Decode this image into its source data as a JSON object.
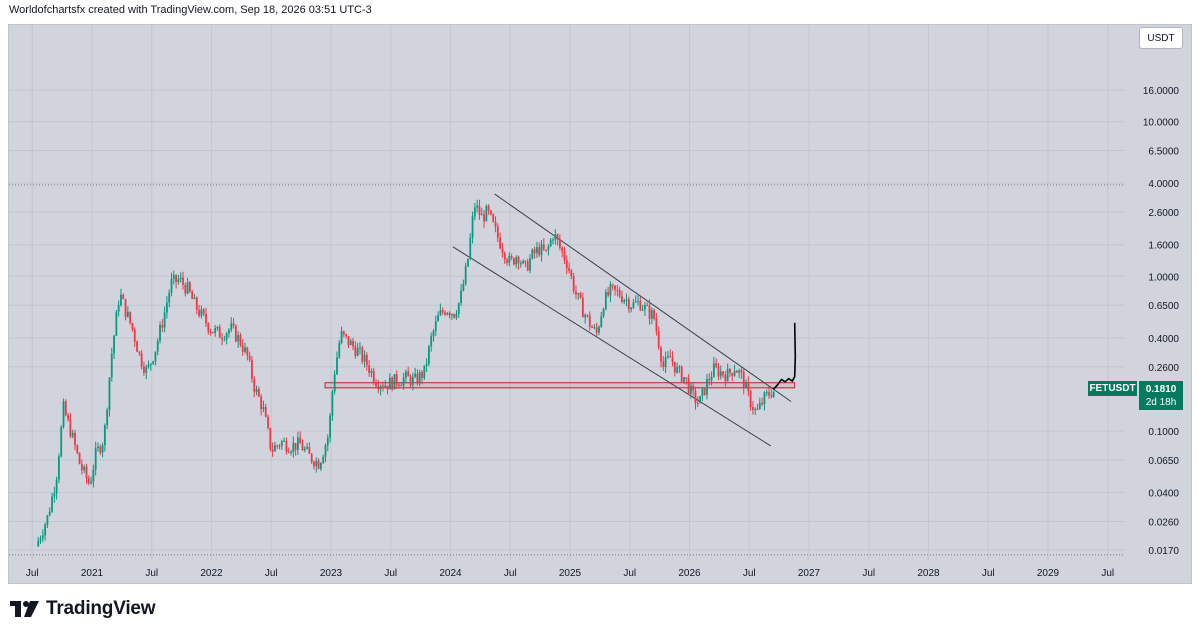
{
  "header": {
    "text": "Worldofchartsfx created with TradingView.com, Sep 18, 2026 03:51 UTC-3"
  },
  "toolbar": {
    "currency_label": "USDT"
  },
  "price_badge": {
    "symbol": "FETUSDT",
    "price": "0.1810",
    "countdown": "2d 18h",
    "color": "#067a5e"
  },
  "footer": {
    "brand": "TradingView"
  },
  "colors": {
    "up": "#089981",
    "down": "#f23645",
    "background": "#d1d4dc",
    "trendline": "#3c3f4a",
    "zone": "#b22833"
  },
  "chart_data": {
    "type": "candlestick",
    "symbol": "FETUSDT",
    "scale": "log",
    "y_ticks": [
      "16.0000",
      "10.0000",
      "6.5000",
      "4.0000",
      "2.6000",
      "1.6000",
      "1.0000",
      "0.6500",
      "0.4000",
      "0.2600",
      "0.1810",
      "0.1000",
      "0.0650",
      "0.0400",
      "0.0260",
      "0.0170"
    ],
    "x_ticks": [
      "Jul",
      "2021",
      "Jul",
      "2022",
      "Jul",
      "2023",
      "Jul",
      "2024",
      "Jul",
      "2025",
      "Jul",
      "2026",
      "Jul",
      "2027",
      "Jul",
      "2028",
      "Jul",
      "2029",
      "Jul"
    ],
    "price_path": [
      {
        "t": 2020.55,
        "p": 0.018
      },
      {
        "t": 2020.65,
        "p": 0.028
      },
      {
        "t": 2020.72,
        "p": 0.05
      },
      {
        "t": 2020.78,
        "p": 0.14
      },
      {
        "t": 2020.84,
        "p": 0.1
      },
      {
        "t": 2020.92,
        "p": 0.06
      },
      {
        "t": 2021.0,
        "p": 0.045
      },
      {
        "t": 2021.05,
        "p": 0.07
      },
      {
        "t": 2021.12,
        "p": 0.09
      },
      {
        "t": 2021.18,
        "p": 0.3
      },
      {
        "t": 2021.25,
        "p": 0.78
      },
      {
        "t": 2021.3,
        "p": 0.6
      },
      {
        "t": 2021.36,
        "p": 0.45
      },
      {
        "t": 2021.42,
        "p": 0.3
      },
      {
        "t": 2021.48,
        "p": 0.24
      },
      {
        "t": 2021.55,
        "p": 0.34
      },
      {
        "t": 2021.62,
        "p": 0.55
      },
      {
        "t": 2021.68,
        "p": 0.9
      },
      {
        "t": 2021.75,
        "p": 0.95
      },
      {
        "t": 2021.82,
        "p": 0.82
      },
      {
        "t": 2021.88,
        "p": 0.65
      },
      {
        "t": 2021.94,
        "p": 0.55
      },
      {
        "t": 2022.02,
        "p": 0.45
      },
      {
        "t": 2022.1,
        "p": 0.42
      },
      {
        "t": 2022.18,
        "p": 0.46
      },
      {
        "t": 2022.26,
        "p": 0.38
      },
      {
        "t": 2022.32,
        "p": 0.3
      },
      {
        "t": 2022.38,
        "p": 0.19
      },
      {
        "t": 2022.45,
        "p": 0.14
      },
      {
        "t": 2022.52,
        "p": 0.075
      },
      {
        "t": 2022.6,
        "p": 0.085
      },
      {
        "t": 2022.68,
        "p": 0.08
      },
      {
        "t": 2022.76,
        "p": 0.082
      },
      {
        "t": 2022.84,
        "p": 0.068
      },
      {
        "t": 2022.92,
        "p": 0.062
      },
      {
        "t": 2023.0,
        "p": 0.095
      },
      {
        "t": 2023.04,
        "p": 0.22
      },
      {
        "t": 2023.1,
        "p": 0.42
      },
      {
        "t": 2023.16,
        "p": 0.38
      },
      {
        "t": 2023.24,
        "p": 0.33
      },
      {
        "t": 2023.32,
        "p": 0.27
      },
      {
        "t": 2023.4,
        "p": 0.21
      },
      {
        "t": 2023.48,
        "p": 0.2
      },
      {
        "t": 2023.56,
        "p": 0.21
      },
      {
        "t": 2023.64,
        "p": 0.22
      },
      {
        "t": 2023.72,
        "p": 0.21
      },
      {
        "t": 2023.8,
        "p": 0.24
      },
      {
        "t": 2023.86,
        "p": 0.4
      },
      {
        "t": 2023.92,
        "p": 0.55
      },
      {
        "t": 2023.98,
        "p": 0.62
      },
      {
        "t": 2024.05,
        "p": 0.58
      },
      {
        "t": 2024.1,
        "p": 0.7
      },
      {
        "t": 2024.16,
        "p": 1.2
      },
      {
        "t": 2024.22,
        "p": 2.9
      },
      {
        "t": 2024.28,
        "p": 2.4
      },
      {
        "t": 2024.33,
        "p": 2.6
      },
      {
        "t": 2024.4,
        "p": 1.9
      },
      {
        "t": 2024.46,
        "p": 1.5
      },
      {
        "t": 2024.52,
        "p": 1.2
      },
      {
        "t": 2024.58,
        "p": 1.4
      },
      {
        "t": 2024.64,
        "p": 1.1
      },
      {
        "t": 2024.7,
        "p": 1.35
      },
      {
        "t": 2024.76,
        "p": 1.5
      },
      {
        "t": 2024.82,
        "p": 1.4
      },
      {
        "t": 2024.88,
        "p": 1.9
      },
      {
        "t": 2024.94,
        "p": 1.5
      },
      {
        "t": 2025.0,
        "p": 1.2
      },
      {
        "t": 2025.06,
        "p": 0.8
      },
      {
        "t": 2025.12,
        "p": 0.62
      },
      {
        "t": 2025.18,
        "p": 0.5
      },
      {
        "t": 2025.24,
        "p": 0.42
      },
      {
        "t": 2025.3,
        "p": 0.68
      },
      {
        "t": 2025.36,
        "p": 0.8
      },
      {
        "t": 2025.42,
        "p": 0.78
      },
      {
        "t": 2025.48,
        "p": 0.72
      },
      {
        "t": 2025.54,
        "p": 0.65
      },
      {
        "t": 2025.6,
        "p": 0.68
      },
      {
        "t": 2025.66,
        "p": 0.6
      },
      {
        "t": 2025.72,
        "p": 0.55
      },
      {
        "t": 2025.76,
        "p": 0.38
      },
      {
        "t": 2025.8,
        "p": 0.26
      },
      {
        "t": 2025.86,
        "p": 0.3
      },
      {
        "t": 2025.92,
        "p": 0.24
      },
      {
        "t": 2025.98,
        "p": 0.22
      },
      {
        "t": 2026.04,
        "p": 0.17
      },
      {
        "t": 2026.1,
        "p": 0.15
      },
      {
        "t": 2026.16,
        "p": 0.2
      },
      {
        "t": 2026.22,
        "p": 0.25
      },
      {
        "t": 2026.28,
        "p": 0.24
      },
      {
        "t": 2026.34,
        "p": 0.23
      },
      {
        "t": 2026.4,
        "p": 0.26
      },
      {
        "t": 2026.46,
        "p": 0.22
      },
      {
        "t": 2026.52,
        "p": 0.16
      },
      {
        "t": 2026.58,
        "p": 0.13
      },
      {
        "t": 2026.64,
        "p": 0.16
      },
      {
        "t": 2026.7,
        "p": 0.18
      },
      {
        "t": 2026.72,
        "p": 0.181
      }
    ],
    "trendlines": [
      {
        "from": {
          "t": 2024.37,
          "p": 3.4
        },
        "to": {
          "t": 2026.85,
          "p": 0.155
        }
      },
      {
        "from": {
          "t": 2024.02,
          "p": 1.55
        },
        "to": {
          "t": 2026.68,
          "p": 0.08
        }
      }
    ],
    "zone": {
      "from_t": 2022.95,
      "to_t": 2026.88,
      "top": 0.205,
      "bottom": 0.19
    },
    "dotted_levels": [
      3.9,
      0.0158
    ],
    "projection": [
      {
        "t": 2026.7,
        "p": 0.185
      },
      {
        "t": 2026.74,
        "p": 0.2
      },
      {
        "t": 2026.77,
        "p": 0.215
      },
      {
        "t": 2026.8,
        "p": 0.208
      },
      {
        "t": 2026.83,
        "p": 0.218
      },
      {
        "t": 2026.86,
        "p": 0.21
      },
      {
        "t": 2026.88,
        "p": 0.225
      },
      {
        "t": 2026.885,
        "p": 0.3
      },
      {
        "t": 2026.88,
        "p": 0.5
      }
    ]
  }
}
